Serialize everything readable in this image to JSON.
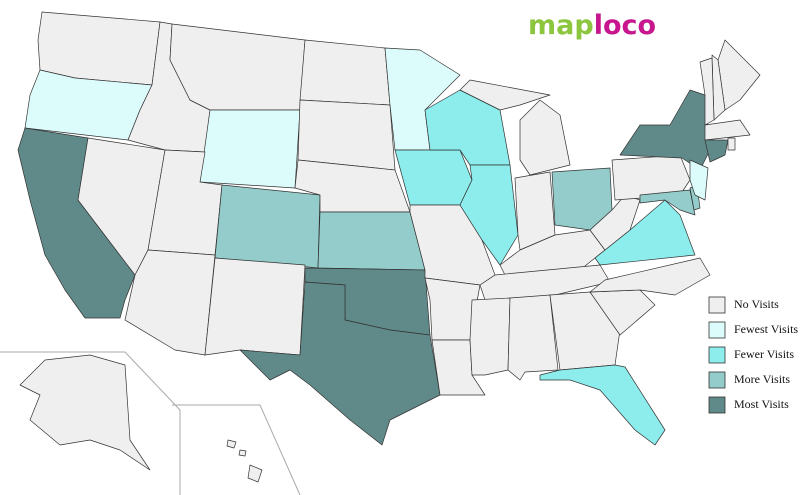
{
  "logo": {
    "part1": "map",
    "part1_color": "#8cc63e",
    "part2": "loco",
    "part2_color": "#c8168e"
  },
  "legend": [
    {
      "label": "No Visits",
      "color": "#efefef"
    },
    {
      "label": "Fewest Visits",
      "color": "#dcfcfc"
    },
    {
      "label": "Fewer Visits",
      "color": "#8decec"
    },
    {
      "label": "More Visits",
      "color": "#93cccb"
    },
    {
      "label": "Most Visits",
      "color": "#5f8a89"
    }
  ]
}
